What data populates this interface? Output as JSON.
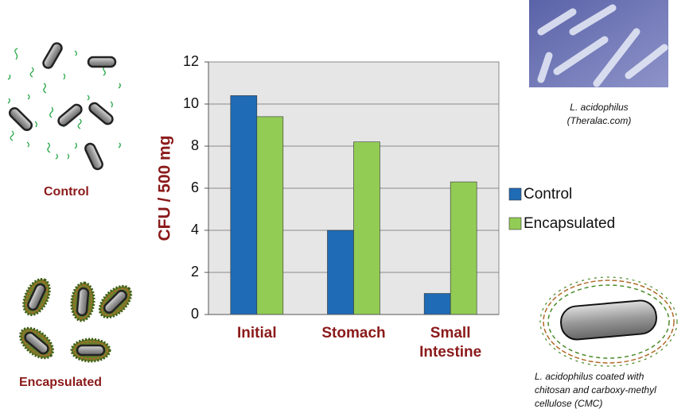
{
  "chart_data": {
    "type": "bar",
    "ylabel": "CFU / 500 mg",
    "categories": [
      "Initial",
      "Stomach",
      "Small Intestine"
    ],
    "series": [
      {
        "name": "Control",
        "color": "#1f6bb5",
        "values": [
          10.4,
          4.0,
          1.0
        ]
      },
      {
        "name": "Encapsulated",
        "color": "#92cc55",
        "values": [
          9.4,
          8.2,
          6.3
        ]
      }
    ],
    "ylim": [
      0,
      12
    ],
    "yticks": [
      0,
      2,
      4,
      6,
      8,
      10,
      12
    ],
    "grid": true,
    "plot_background": "#e6e6e6",
    "legend": "right",
    "annotations": {
      "control_label": "Control",
      "encapsulated_label": "Encapsulated",
      "photo_caption": [
        "L. acidophilus",
        "(Theralac.com)"
      ],
      "coating_caption": [
        "L. acidophilus coated with",
        "chitosan and carboxy-methyl",
        "cellulose (CMC)"
      ]
    }
  }
}
